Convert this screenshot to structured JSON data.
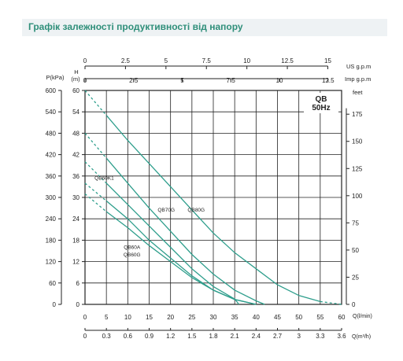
{
  "banner": {
    "title": "Графік залежності продуктивності від напору"
  },
  "chart_data": {
    "type": "line",
    "colors": {
      "curve": "#2e9e8c",
      "grid": "#222222",
      "axis_text": "#222222"
    },
    "model_label": {
      "line1": "QB",
      "line2": "50Hz"
    },
    "axes": {
      "pressure": {
        "label": "P(kPa)",
        "ticks": [
          0,
          60,
          120,
          180,
          240,
          300,
          360,
          420,
          480,
          540,
          600
        ]
      },
      "head_m": {
        "label": "H",
        "unit": "(m)",
        "ticks": [
          0,
          6,
          12,
          18,
          24,
          30,
          36,
          42,
          48,
          54,
          60
        ],
        "range": [
          0,
          60
        ]
      },
      "head_feet": {
        "label": "feet",
        "ticks": [
          0,
          25,
          50,
          75,
          100,
          125,
          150,
          175
        ]
      },
      "flow_us": {
        "label": "US  g.p.m",
        "ticks": [
          "0",
          "2.5",
          "5",
          "7.5",
          "10",
          "12.5",
          "15"
        ]
      },
      "flow_imp": {
        "label": "Imp  g.p.m",
        "ticks": [
          "0",
          "2.5",
          "5",
          "7.5",
          "10",
          "12.5"
        ]
      },
      "flow_lmin": {
        "label": "Q(l/min)",
        "ticks": [
          0,
          5,
          10,
          15,
          20,
          25,
          30,
          35,
          40,
          45,
          50,
          55,
          60
        ],
        "range": [
          0,
          60
        ]
      },
      "flow_m3h": {
        "label": "Q(m³/h)",
        "ticks": [
          "0",
          "0.3",
          "0.6",
          "0.9",
          "1.2",
          "1.5",
          "1.8",
          "2.1",
          "2.4",
          "2.7",
          "3",
          "3.3",
          "3.6"
        ]
      }
    },
    "series": [
      {
        "name": "QB60K1",
        "points": [
          [
            0,
            40
          ],
          [
            5,
            34
          ],
          [
            10,
            28
          ],
          [
            15,
            22
          ],
          [
            20,
            16
          ],
          [
            25,
            10
          ],
          [
            30,
            5
          ],
          [
            35,
            1.5
          ],
          [
            36,
            0
          ]
        ],
        "dashed_to": 5,
        "label_pos": [
          4.5,
          35
        ]
      },
      {
        "name": "QB60A",
        "points": [
          [
            0,
            34
          ],
          [
            5,
            29
          ],
          [
            10,
            24
          ],
          [
            15,
            18
          ],
          [
            20,
            13
          ],
          [
            25,
            8
          ],
          [
            30,
            4
          ],
          [
            35,
            1.4
          ],
          [
            40,
            0
          ]
        ],
        "dashed_to": 5,
        "label_pos": [
          11,
          15.5
        ]
      },
      {
        "name": "QB60G",
        "points": [
          [
            0,
            31
          ],
          [
            5,
            26
          ],
          [
            10,
            21.5
          ],
          [
            15,
            16.5
          ],
          [
            20,
            12
          ],
          [
            25,
            7.5
          ],
          [
            30,
            4
          ],
          [
            35,
            1.4
          ],
          [
            40,
            0
          ]
        ],
        "dashed_to": 5,
        "label_pos": [
          11,
          13.5
        ]
      },
      {
        "name": "QB70G",
        "points": [
          [
            0,
            48
          ],
          [
            5,
            41
          ],
          [
            10,
            34
          ],
          [
            15,
            27
          ],
          [
            20,
            20.5
          ],
          [
            25,
            14
          ],
          [
            30,
            8.5
          ],
          [
            35,
            4
          ],
          [
            40,
            1
          ],
          [
            42,
            0
          ]
        ],
        "dashed_to": 5,
        "label_pos": [
          19,
          26
        ]
      },
      {
        "name": "QB80G",
        "points": [
          [
            0,
            60
          ],
          [
            5,
            53
          ],
          [
            10,
            46
          ],
          [
            15,
            39.5
          ],
          [
            20,
            33
          ],
          [
            25,
            26.5
          ],
          [
            30,
            20
          ],
          [
            35,
            14.5
          ],
          [
            40,
            10
          ],
          [
            45,
            5.5
          ],
          [
            50,
            2.5
          ],
          [
            55,
            0.8
          ],
          [
            60,
            0
          ]
        ],
        "dashed_to": 5,
        "dashed_from": 55,
        "label_pos": [
          26,
          26
        ]
      }
    ]
  }
}
